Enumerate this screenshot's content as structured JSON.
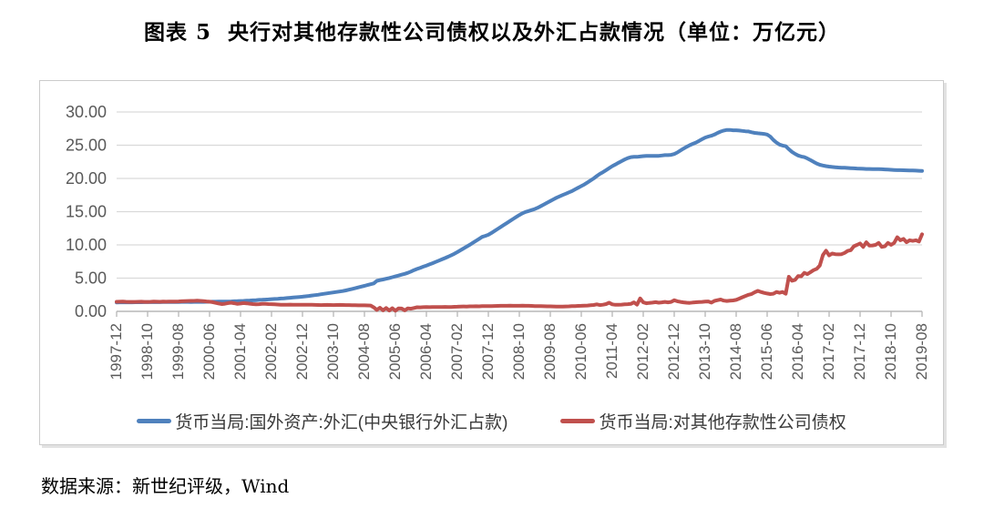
{
  "page": {
    "title": "图表 5  央行对其他存款性公司债权以及外汇占款情况（单位：万亿元）",
    "source": "数据来源：新世纪评级，Wind"
  },
  "chart_data": {
    "type": "line",
    "title": "图表 5  央行对其他存款性公司债权以及外汇占款情况（单位：万亿元）",
    "unit": "万亿元",
    "ylim": [
      0,
      30
    ],
    "yticks": [
      "0.00",
      "5.00",
      "10.00",
      "15.00",
      "20.00",
      "25.00",
      "30.00"
    ],
    "grid": true,
    "legend_position": "bottom",
    "x_label_every_n_points": 10,
    "categories": [
      "1997-12",
      "1998-10",
      "1999-08",
      "2000-06",
      "2001-04",
      "2002-02",
      "2002-12",
      "2003-10",
      "2004-08",
      "2005-06",
      "2006-04",
      "2007-02",
      "2007-12",
      "2008-10",
      "2009-08",
      "2010-06",
      "2011-04",
      "2012-02",
      "2012-12",
      "2013-10",
      "2014-08",
      "2015-06",
      "2016-04",
      "2017-02",
      "2017-12",
      "2018-10",
      "2019-08"
    ],
    "colors": {
      "grid": "#d9d9d9",
      "axis": "#b7b7b7",
      "tick_text": "#595959"
    },
    "series": [
      {
        "name": "货币当局:国外资产:外汇(中央银行外汇占款)",
        "color": "#4f81bd",
        "values": [
          1.34,
          1.35,
          1.35,
          1.36,
          1.36,
          1.36,
          1.37,
          1.37,
          1.37,
          1.38,
          1.38,
          1.38,
          1.39,
          1.39,
          1.39,
          1.4,
          1.4,
          1.4,
          1.41,
          1.41,
          1.41,
          1.42,
          1.42,
          1.42,
          1.41,
          1.42,
          1.42,
          1.43,
          1.43,
          1.44,
          1.44,
          1.45,
          1.45,
          1.46,
          1.46,
          1.47,
          1.48,
          1.5,
          1.52,
          1.54,
          1.56,
          1.58,
          1.61,
          1.63,
          1.66,
          1.69,
          1.72,
          1.74,
          1.77,
          1.8,
          1.83,
          1.86,
          1.89,
          1.93,
          1.96,
          2.0,
          2.04,
          2.08,
          2.12,
          2.16,
          2.21,
          2.26,
          2.32,
          2.38,
          2.44,
          2.5,
          2.57,
          2.64,
          2.71,
          2.78,
          2.85,
          2.92,
          2.98,
          3.05,
          3.15,
          3.26,
          3.37,
          3.48,
          3.6,
          3.72,
          3.84,
          3.96,
          4.08,
          4.2,
          4.59,
          4.7,
          4.8,
          4.91,
          5.02,
          5.14,
          5.26,
          5.39,
          5.52,
          5.65,
          5.79,
          5.99,
          6.21,
          6.38,
          6.55,
          6.72,
          6.89,
          7.07,
          7.25,
          7.44,
          7.63,
          7.82,
          8.02,
          8.22,
          8.44,
          8.66,
          8.92,
          9.19,
          9.46,
          9.74,
          10.02,
          10.31,
          10.6,
          10.9,
          11.2,
          11.35,
          11.52,
          11.8,
          12.1,
          12.4,
          12.7,
          13.0,
          13.3,
          13.6,
          13.9,
          14.2,
          14.5,
          14.75,
          14.96,
          15.1,
          15.25,
          15.4,
          15.6,
          15.85,
          16.1,
          16.35,
          16.6,
          16.85,
          17.1,
          17.3,
          17.51,
          17.7,
          17.9,
          18.1,
          18.35,
          18.6,
          18.85,
          19.1,
          19.4,
          19.7,
          20.0,
          20.35,
          20.68,
          20.95,
          21.25,
          21.55,
          21.85,
          22.1,
          22.35,
          22.6,
          22.85,
          23.05,
          23.2,
          23.25,
          23.24,
          23.3,
          23.35,
          23.4,
          23.4,
          23.4,
          23.4,
          23.4,
          23.45,
          23.5,
          23.5,
          23.55,
          23.67,
          23.9,
          24.2,
          24.5,
          24.75,
          25.0,
          25.2,
          25.4,
          25.65,
          25.9,
          26.15,
          26.3,
          26.43,
          26.6,
          26.85,
          27.05,
          27.2,
          27.3,
          27.3,
          27.25,
          27.25,
          27.2,
          27.15,
          27.1,
          27.07,
          26.95,
          26.85,
          26.8,
          26.75,
          26.7,
          26.6,
          26.3,
          25.8,
          25.4,
          25.1,
          24.95,
          24.85,
          24.4,
          24.0,
          23.7,
          23.45,
          23.3,
          23.2,
          23.0,
          22.75,
          22.5,
          22.25,
          22.05,
          21.94,
          21.85,
          21.78,
          21.72,
          21.68,
          21.65,
          21.62,
          21.6,
          21.58,
          21.55,
          21.52,
          21.5,
          21.48,
          21.45,
          21.43,
          21.42,
          21.4,
          21.4,
          21.4,
          21.38,
          21.35,
          21.33,
          21.3,
          21.28,
          21.25,
          21.25,
          21.23,
          21.22,
          21.2,
          21.2,
          21.18,
          21.15,
          21.13
        ]
      },
      {
        "name": "货币当局:对其他存款性公司债权",
        "color": "#c0504d",
        "values": [
          1.44,
          1.45,
          1.46,
          1.44,
          1.43,
          1.42,
          1.43,
          1.44,
          1.45,
          1.43,
          1.42,
          1.44,
          1.46,
          1.45,
          1.44,
          1.46,
          1.45,
          1.47,
          1.46,
          1.48,
          1.5,
          1.52,
          1.55,
          1.56,
          1.57,
          1.58,
          1.6,
          1.58,
          1.55,
          1.5,
          1.45,
          1.38,
          1.28,
          1.18,
          1.1,
          1.15,
          1.25,
          1.3,
          1.22,
          1.12,
          1.18,
          1.25,
          1.2,
          1.15,
          1.1,
          1.05,
          1.08,
          1.12,
          1.13,
          1.1,
          1.08,
          1.05,
          1.03,
          1.0,
          0.98,
          1.0,
          1.02,
          1.0,
          0.99,
          0.98,
          1.0,
          1.0,
          0.99,
          0.98,
          0.97,
          0.96,
          0.95,
          0.96,
          0.97,
          0.96,
          0.95,
          0.96,
          0.97,
          0.96,
          0.95,
          0.94,
          0.93,
          0.92,
          0.91,
          0.9,
          0.9,
          0.89,
          0.88,
          0.6,
          0.22,
          0.55,
          0.15,
          0.5,
          0.12,
          0.48,
          0.1,
          0.45,
          0.42,
          0.15,
          0.45,
          0.4,
          0.5,
          0.62,
          0.6,
          0.63,
          0.64,
          0.63,
          0.65,
          0.66,
          0.65,
          0.66,
          0.67,
          0.66,
          0.66,
          0.68,
          0.7,
          0.72,
          0.74,
          0.73,
          0.75,
          0.76,
          0.77,
          0.76,
          0.78,
          0.78,
          0.79,
          0.8,
          0.81,
          0.82,
          0.83,
          0.84,
          0.84,
          0.85,
          0.84,
          0.83,
          0.84,
          0.85,
          0.84,
          0.83,
          0.82,
          0.8,
          0.79,
          0.78,
          0.77,
          0.76,
          0.75,
          0.74,
          0.73,
          0.72,
          0.72,
          0.74,
          0.76,
          0.78,
          0.8,
          0.82,
          0.84,
          0.86,
          0.88,
          0.92,
          0.96,
          1.05,
          0.95,
          1.0,
          1.1,
          1.3,
          1.05,
          0.98,
          1.0,
          1.02,
          1.05,
          1.08,
          1.12,
          1.35,
          1.02,
          1.95,
          1.35,
          1.22,
          1.28,
          1.32,
          1.38,
          1.3,
          1.36,
          1.42,
          1.36,
          1.42,
          1.67,
          1.52,
          1.42,
          1.35,
          1.3,
          1.28,
          1.33,
          1.37,
          1.41,
          1.43,
          1.46,
          1.49,
          1.31,
          1.58,
          1.68,
          1.78,
          1.62,
          1.56,
          1.6,
          1.64,
          1.72,
          1.92,
          2.12,
          2.32,
          2.5,
          2.62,
          2.88,
          3.08,
          2.92,
          2.78,
          2.68,
          2.6,
          2.66,
          2.92,
          2.8,
          2.92,
          2.66,
          5.2,
          4.6,
          4.72,
          5.3,
          5.28,
          5.8,
          5.6,
          5.9,
          6.2,
          6.4,
          6.9,
          8.47,
          9.13,
          8.42,
          8.7,
          8.6,
          8.58,
          8.6,
          8.8,
          9.1,
          9.2,
          9.8,
          10.0,
          10.22,
          9.7,
          10.4,
          9.9,
          9.92,
          10.0,
          10.3,
          9.7,
          9.8,
          10.3,
          10.0,
          10.3,
          11.15,
          10.7,
          10.9,
          10.4,
          10.7,
          10.6,
          10.7,
          10.5,
          11.6
        ]
      }
    ]
  }
}
